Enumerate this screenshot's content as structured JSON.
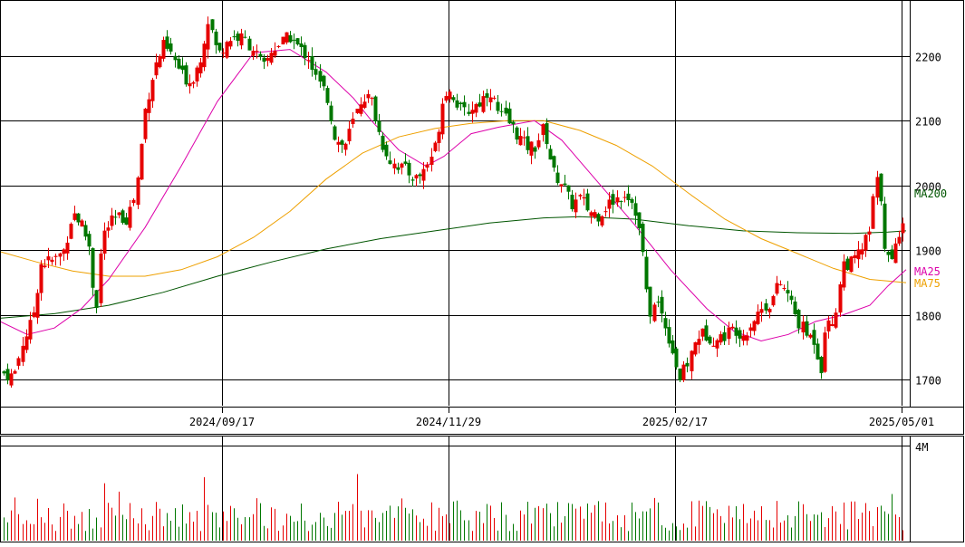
{
  "chart_data": [
    {
      "type": "candlestick",
      "title": "",
      "y_ticks": [
        1700,
        1800,
        1900,
        2000,
        2100,
        2200
      ],
      "ylim": [
        1660,
        2285
      ],
      "x_tick_labels": [
        "2024/09/17",
        "2024/11/29",
        "2025/02/17",
        "2025/05/01"
      ],
      "moving_average_labels": [
        "MA200",
        "MA25",
        "MA75"
      ],
      "colors": {
        "up": "#e60000",
        "down": "#007700",
        "ma25": "#dd00aa",
        "ma75": "#eea000",
        "ma200": "#005500",
        "grid": "#000000"
      },
      "series": [
        {
          "name": "MA200",
          "color": "#005500",
          "values": [
            [
              0,
              1795
            ],
            [
              60,
              1802
            ],
            [
              120,
              1815
            ],
            [
              180,
              1835
            ],
            [
              240,
              1860
            ],
            [
              300,
              1882
            ],
            [
              360,
              1902
            ],
            [
              420,
              1918
            ],
            [
              480,
              1930
            ],
            [
              540,
              1942
            ],
            [
              600,
              1950
            ],
            [
              640,
              1952
            ],
            [
              700,
              1948
            ],
            [
              760,
              1938
            ],
            [
              820,
              1930
            ],
            [
              880,
              1927
            ],
            [
              940,
              1926
            ],
            [
              980,
              1928
            ],
            [
              1000,
              1930
            ]
          ]
        },
        {
          "name": "MA75",
          "color": "#eea000",
          "values": [
            [
              0,
              1898
            ],
            [
              40,
              1882
            ],
            [
              80,
              1868
            ],
            [
              120,
              1860
            ],
            [
              160,
              1860
            ],
            [
              200,
              1870
            ],
            [
              240,
              1890
            ],
            [
              280,
              1920
            ],
            [
              320,
              1960
            ],
            [
              360,
              2010
            ],
            [
              400,
              2050
            ],
            [
              440,
              2075
            ],
            [
              480,
              2088
            ],
            [
              520,
              2096
            ],
            [
              560,
              2100
            ],
            [
              600,
              2100
            ],
            [
              640,
              2085
            ],
            [
              680,
              2062
            ],
            [
              720,
              2030
            ],
            [
              760,
              1988
            ],
            [
              800,
              1948
            ],
            [
              840,
              1918
            ],
            [
              880,
              1895
            ],
            [
              920,
              1872
            ],
            [
              960,
              1855
            ],
            [
              1000,
              1850
            ]
          ]
        },
        {
          "name": "MA25",
          "color": "#dd00aa",
          "values": [
            [
              0,
              1790
            ],
            [
              30,
              1770
            ],
            [
              60,
              1780
            ],
            [
              90,
              1810
            ],
            [
              120,
              1855
            ],
            [
              160,
              1935
            ],
            [
              200,
              2030
            ],
            [
              240,
              2130
            ],
            [
              280,
              2205
            ],
            [
              320,
              2210
            ],
            [
              360,
              2175
            ],
            [
              390,
              2135
            ],
            [
              410,
              2100
            ],
            [
              440,
              2055
            ],
            [
              470,
              2030
            ],
            [
              490,
              2045
            ],
            [
              520,
              2080
            ],
            [
              550,
              2090
            ],
            [
              590,
              2100
            ],
            [
              620,
              2070
            ],
            [
              660,
              2005
            ],
            [
              700,
              1940
            ],
            [
              740,
              1870
            ],
            [
              780,
              1810
            ],
            [
              810,
              1775
            ],
            [
              840,
              1760
            ],
            [
              870,
              1770
            ],
            [
              900,
              1790
            ],
            [
              930,
              1800
            ],
            [
              960,
              1815
            ],
            [
              980,
              1845
            ],
            [
              1000,
              1870
            ]
          ]
        }
      ],
      "price_range": [
        1680,
        2270
      ],
      "close_path": [
        [
          0,
          1712
        ],
        [
          15,
          1705
        ],
        [
          25,
          1760
        ],
        [
          35,
          1790
        ],
        [
          45,
          1880
        ],
        [
          60,
          1885
        ],
        [
          70,
          1900
        ],
        [
          80,
          1960
        ],
        [
          90,
          1940
        ],
        [
          100,
          1900
        ],
        [
          105,
          1790
        ],
        [
          112,
          1920
        ],
        [
          120,
          1940
        ],
        [
          130,
          1950
        ],
        [
          140,
          1950
        ],
        [
          150,
          1990
        ],
        [
          160,
          2120
        ],
        [
          170,
          2180
        ],
        [
          180,
          2215
        ],
        [
          190,
          2200
        ],
        [
          200,
          2170
        ],
        [
          210,
          2160
        ],
        [
          220,
          2190
        ],
        [
          230,
          2260
        ],
        [
          240,
          2200
        ],
        [
          250,
          2225
        ],
        [
          260,
          2230
        ],
        [
          270,
          2225
        ],
        [
          280,
          2210
        ],
        [
          290,
          2180
        ],
        [
          300,
          2210
        ],
        [
          310,
          2220
        ],
        [
          320,
          2230
        ],
        [
          330,
          2210
        ],
        [
          340,
          2200
        ],
        [
          350,
          2160
        ],
        [
          360,
          2140
        ],
        [
          370,
          2070
        ],
        [
          380,
          2060
        ],
        [
          390,
          2100
        ],
        [
          400,
          2140
        ],
        [
          410,
          2130
        ],
        [
          420,
          2070
        ],
        [
          430,
          2040
        ],
        [
          440,
          2030
        ],
        [
          450,
          2020
        ],
        [
          460,
          2010
        ],
        [
          470,
          2030
        ],
        [
          480,
          2060
        ],
        [
          490,
          2150
        ],
        [
          500,
          2140
        ],
        [
          510,
          2110
        ],
        [
          520,
          2120
        ],
        [
          530,
          2130
        ],
        [
          540,
          2150
        ],
        [
          550,
          2110
        ],
        [
          560,
          2100
        ],
        [
          570,
          2080
        ],
        [
          580,
          2060
        ],
        [
          590,
          2060
        ],
        [
          600,
          2090
        ],
        [
          610,
          2020
        ],
        [
          620,
          2005
        ],
        [
          630,
          1970
        ],
        [
          640,
          1980
        ],
        [
          650,
          1960
        ],
        [
          660,
          1955
        ],
        [
          670,
          1970
        ],
        [
          680,
          1980
        ],
        [
          690,
          1990
        ],
        [
          700,
          1970
        ],
        [
          710,
          1890
        ],
        [
          715,
          1800
        ],
        [
          725,
          1820
        ],
        [
          735,
          1780
        ],
        [
          745,
          1730
        ],
        [
          750,
          1700
        ],
        [
          760,
          1730
        ],
        [
          770,
          1770
        ],
        [
          780,
          1770
        ],
        [
          790,
          1760
        ],
        [
          800,
          1770
        ],
        [
          810,
          1780
        ],
        [
          820,
          1770
        ],
        [
          830,
          1790
        ],
        [
          840,
          1810
        ],
        [
          850,
          1820
        ],
        [
          860,
          1850
        ],
        [
          870,
          1830
        ],
        [
          880,
          1790
        ],
        [
          890,
          1770
        ],
        [
          900,
          1760
        ],
        [
          905,
          1705
        ],
        [
          910,
          1780
        ],
        [
          920,
          1790
        ],
        [
          930,
          1880
        ],
        [
          940,
          1880
        ],
        [
          950,
          1900
        ],
        [
          960,
          1930
        ],
        [
          965,
          2000
        ],
        [
          970,
          2010
        ],
        [
          977,
          1890
        ],
        [
          985,
          1880
        ],
        [
          990,
          1920
        ],
        [
          997,
          1955
        ]
      ]
    },
    {
      "type": "bar",
      "title": "",
      "y_tick_labels": [
        "4M"
      ],
      "ylim": [
        0,
        4000000
      ],
      "note": "volume bars colored by candle direction"
    }
  ]
}
